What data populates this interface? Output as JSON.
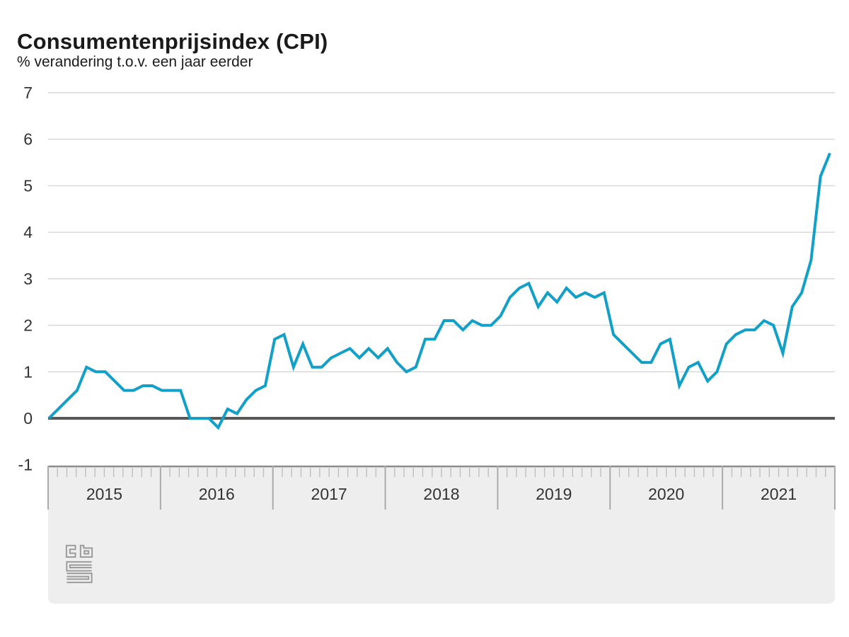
{
  "title": "Consumentenprijsindex (CPI)",
  "subtitle": "% verandering t.o.v. een jaar eerder",
  "logo_name": "cbs-logo",
  "chart_data": {
    "type": "line",
    "title": "Consumentenprijsindex (CPI)",
    "subtitle": "% verandering t.o.v. een jaar eerder",
    "unit": "% change year-on-year",
    "x_start": "2015-01",
    "x_end": "2021-12",
    "x_interval": "month",
    "categories_years": [
      "2015",
      "2016",
      "2017",
      "2018",
      "2019",
      "2020",
      "2021"
    ],
    "series": [
      {
        "name": "CPI",
        "values": [
          0.0,
          0.2,
          0.4,
          0.6,
          1.1,
          1.0,
          1.0,
          0.8,
          0.6,
          0.6,
          0.7,
          0.7,
          0.6,
          0.6,
          0.6,
          0.0,
          0.0,
          0.0,
          -0.2,
          0.2,
          0.1,
          0.4,
          0.6,
          0.7,
          1.7,
          1.8,
          1.1,
          1.6,
          1.1,
          1.1,
          1.3,
          1.4,
          1.5,
          1.3,
          1.5,
          1.3,
          1.5,
          1.2,
          1.0,
          1.1,
          1.7,
          1.7,
          2.1,
          2.1,
          1.9,
          2.1,
          2.0,
          2.0,
          2.2,
          2.6,
          2.8,
          2.9,
          2.4,
          2.7,
          2.5,
          2.8,
          2.6,
          2.7,
          2.6,
          2.7,
          1.8,
          1.6,
          1.4,
          1.2,
          1.2,
          1.6,
          1.7,
          0.7,
          1.1,
          1.2,
          0.8,
          1.0,
          1.6,
          1.8,
          1.9,
          1.9,
          2.1,
          2.0,
          1.4,
          2.4,
          2.7,
          3.4,
          5.2,
          5.7
        ]
      }
    ],
    "ylim": [
      -1,
      7
    ],
    "yticks": [
      7,
      6,
      5,
      4,
      3,
      2,
      1,
      0,
      -1
    ],
    "grid": "horizontal gridlines at integers, emphasized zero line",
    "legend": "none",
    "colors": {
      "line": "#12a0c8",
      "zero_line": "#57585a",
      "gridline": "#d6d6d6",
      "band_bg": "#eeeeee",
      "band_border": "#8c8c8c",
      "month_tick": "#bfbfbf",
      "year_separator": "#ababab",
      "axis_text": "#333333",
      "logo": "#9c9c9c"
    }
  }
}
